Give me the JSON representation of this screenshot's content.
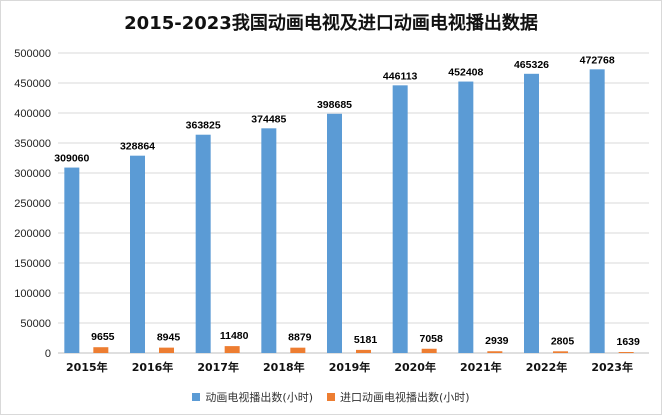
{
  "chart_data": {
    "type": "bar",
    "title": "2015-2023我国动画电视及进口动画电视播出数据",
    "categories": [
      "2015年",
      "2016年",
      "2017年",
      "2018年",
      "2019年",
      "2020年",
      "2021年",
      "2022年",
      "2023年"
    ],
    "series": [
      {
        "name": "动画电视播出数(小时)",
        "color": "#5b9bd5",
        "values": [
          309060,
          328864,
          363825,
          374485,
          398685,
          446113,
          452408,
          465326,
          472768
        ]
      },
      {
        "name": "进口动画电视播出数(小时)",
        "color": "#ed7d31",
        "values": [
          9655,
          8945,
          11480,
          8879,
          5181,
          7058,
          2939,
          2805,
          1639
        ]
      }
    ],
    "ylim": [
      0,
      500000
    ],
    "yticks": [
      "0",
      "50000",
      "100000",
      "150000",
      "200000",
      "250000",
      "300000",
      "350000",
      "400000",
      "450000",
      "500000"
    ],
    "grid": true,
    "legend_position": "bottom"
  }
}
